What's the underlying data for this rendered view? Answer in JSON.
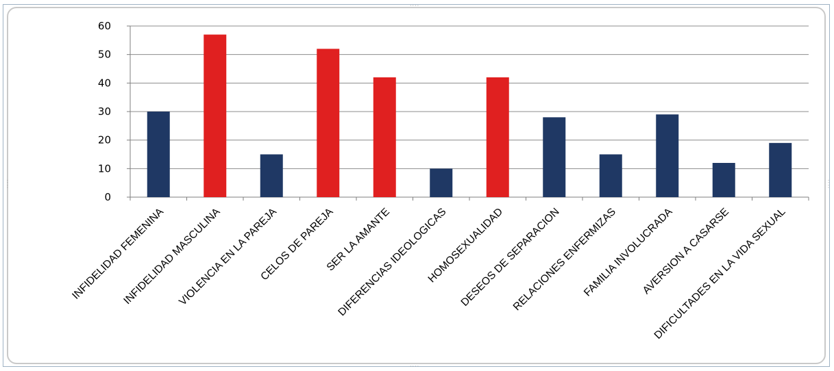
{
  "chart_data": {
    "type": "bar",
    "title": "",
    "xlabel": "",
    "ylabel": "",
    "ylim": [
      0,
      60
    ],
    "yticks": [
      0,
      10,
      20,
      30,
      40,
      50,
      60
    ],
    "grid": true,
    "legend": "none",
    "categories": [
      "INFIDELIDAD FEMENINA",
      "INFIDELIDAD MASCULINA",
      "VIOLENCIA EN LA PAREJA",
      "CELOS DE PAREJA",
      "SER LA AMANTE",
      "DIFERENCIAS IDEOLOGICAS",
      "HOMOSEXUALIDAD",
      "DESEOS DE SEPARACION",
      "RELACIONES ENFERMIZAS",
      "FAMILIA INVOLUCRADA",
      "AVERSION A CASARSE",
      "DIFICULTADES EN LA VIDA SEXUAL"
    ],
    "values": [
      30,
      57,
      15,
      52,
      42,
      10,
      42,
      28,
      15,
      29,
      12,
      19
    ],
    "bar_colors": [
      "#1f3864",
      "#e02020",
      "#1f3864",
      "#e02020",
      "#e02020",
      "#1f3864",
      "#e02020",
      "#1f3864",
      "#1f3864",
      "#1f3864",
      "#1f3864",
      "#1f3864"
    ]
  },
  "colors": {
    "navy": "#1f3864",
    "red": "#e02020",
    "gridline": "#8c8c8c",
    "frame": "#c9c9c9"
  }
}
